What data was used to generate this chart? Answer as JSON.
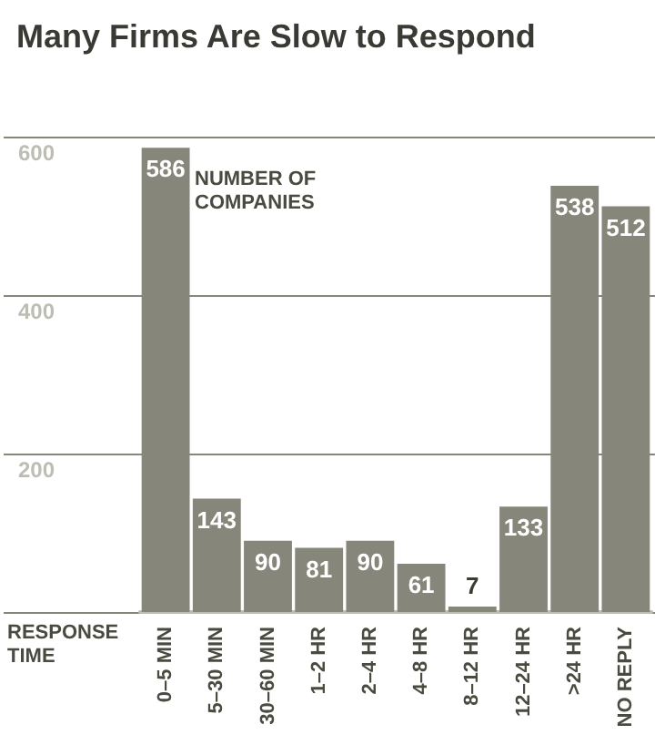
{
  "chart_data": {
    "type": "bar",
    "title": "Many Firms Are Slow to Respond",
    "xlabel": "RESPONSE TIME",
    "annotations": [
      "NUMBER OF COMPANIES"
    ],
    "categories": [
      "0–5 MIN",
      "5–30 MIN",
      "30–60 MIN",
      "1–2 HR",
      "2–4 HR",
      "4–8 HR",
      "8–12 HR",
      "12–24 HR",
      ">24 HR",
      "NO REPLY"
    ],
    "values": [
      586,
      143,
      90,
      81,
      90,
      61,
      7,
      133,
      538,
      512
    ],
    "color": "#86867a",
    "data_labels": true,
    "ylim": [
      0,
      600
    ],
    "yticks": [
      {
        "value": 0,
        "label": null
      },
      200,
      400,
      600
    ],
    "grid": "y"
  }
}
